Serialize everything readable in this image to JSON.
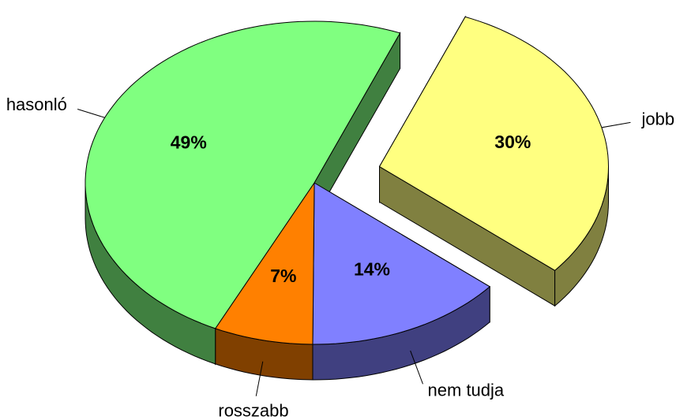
{
  "chart_data": {
    "type": "pie3d",
    "categories": [
      "jobb",
      "nem tudja",
      "rosszabb",
      "hasonló"
    ],
    "values": [
      30,
      14,
      7,
      49
    ],
    "value_labels": [
      "30%",
      "14%",
      "7%",
      "49%"
    ],
    "colors": [
      "#ffff80",
      "#8080ff",
      "#ff8000",
      "#80ff80"
    ],
    "side_colors": [
      "#808040",
      "#404080",
      "#804000",
      "#408040"
    ],
    "exploded": [
      true,
      false,
      false,
      false
    ]
  }
}
